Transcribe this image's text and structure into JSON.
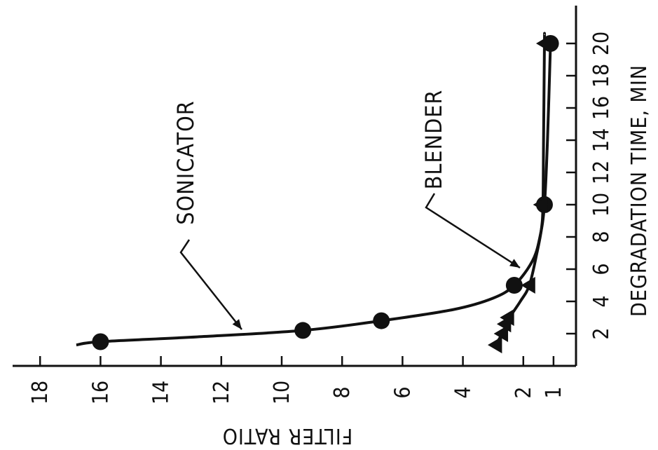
{
  "chart_data": {
    "type": "scatter",
    "x_axis_label": "DEGRADATION TIME, MIN",
    "y_axis_label": "FILTER RATIO",
    "x_ticks": [
      2,
      4,
      6,
      8,
      10,
      12,
      14,
      16,
      18,
      20
    ],
    "y_ticks": [
      1,
      2,
      4,
      6,
      8,
      10,
      12,
      14,
      16,
      18
    ],
    "x_range": [
      0,
      22
    ],
    "y_range": [
      1,
      19
    ],
    "grid": false,
    "series": [
      {
        "name": "SONICATOR",
        "marker": "circle",
        "points": [
          {
            "x": 1.5,
            "y": 16
          },
          {
            "x": 2.2,
            "y": 9.3
          },
          {
            "x": 2.8,
            "y": 6.7
          },
          {
            "x": 5.0,
            "y": 2.3
          },
          {
            "x": 10.0,
            "y": 1.3
          },
          {
            "x": 20.0,
            "y": 1.1
          }
        ],
        "curve": [
          {
            "x": 1.3,
            "y": 16.8
          },
          {
            "x": 1.5,
            "y": 16
          },
          {
            "x": 1.8,
            "y": 12.8
          },
          {
            "x": 2.2,
            "y": 9.3
          },
          {
            "x": 2.8,
            "y": 6.7
          },
          {
            "x": 3.5,
            "y": 4.3
          },
          {
            "x": 4.2,
            "y": 3.0
          },
          {
            "x": 5.0,
            "y": 2.3
          },
          {
            "x": 6.5,
            "y": 1.7
          },
          {
            "x": 8.0,
            "y": 1.45
          },
          {
            "x": 10.0,
            "y": 1.3
          },
          {
            "x": 14.0,
            "y": 1.2
          },
          {
            "x": 20.0,
            "y": 1.1
          }
        ]
      },
      {
        "name": "BLENDER",
        "marker": "triangle",
        "points": [
          {
            "x": 1.3,
            "y": 2.9
          },
          {
            "x": 2.0,
            "y": 2.7
          },
          {
            "x": 2.6,
            "y": 2.6
          },
          {
            "x": 3.0,
            "y": 2.5
          },
          {
            "x": 5.0,
            "y": 1.8
          },
          {
            "x": 10.0,
            "y": 1.4
          },
          {
            "x": 20.0,
            "y": 1.3
          }
        ],
        "curve": [
          {
            "x": 1.2,
            "y": 2.95
          },
          {
            "x": 2.0,
            "y": 2.7
          },
          {
            "x": 3.0,
            "y": 2.45
          },
          {
            "x": 4.0,
            "y": 2.1
          },
          {
            "x": 5.0,
            "y": 1.8
          },
          {
            "x": 7.0,
            "y": 1.55
          },
          {
            "x": 8.5,
            "y": 1.4
          },
          {
            "x": 10.0,
            "y": 1.35
          },
          {
            "x": 14.0,
            "y": 1.33
          },
          {
            "x": 20.0,
            "y": 1.3
          },
          {
            "x": 20.5,
            "y": 1.3
          }
        ]
      }
    ],
    "annotations": [
      {
        "text": "SONICATOR",
        "series": "SONICATOR"
      },
      {
        "text": "BLENDER",
        "series": "BLENDER"
      }
    ]
  }
}
